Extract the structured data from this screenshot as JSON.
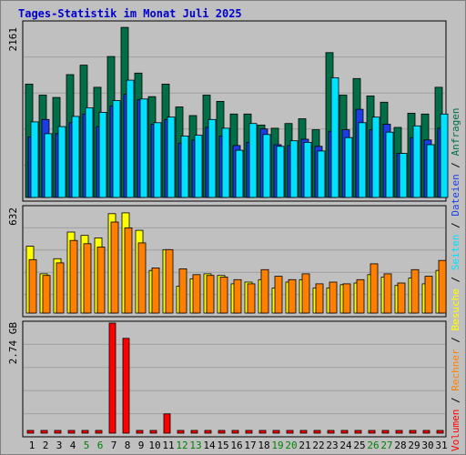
{
  "title": "Tages-Statistik im Monat Juli 2025",
  "colors": {
    "frame_bg": "#c0c0c0",
    "plot_bg": "#c0c0c0",
    "title": "#0000cc",
    "weekday_label": "#000000",
    "weekend_label": "#008000",
    "gridline": "#a0a0a0",
    "anfragen": "#006e46",
    "dateien": "#1c3ce6",
    "seiten": "#00e0ff",
    "besuche": "#ffff00",
    "rechner": "#ff8000",
    "volumen": "#ff0000"
  },
  "chart_data": [
    {
      "type": "bar",
      "panel": "top",
      "y_axis_label": "2161",
      "ylim": [
        0,
        2161
      ],
      "grid": true,
      "categories": [
        "1",
        "2",
        "3",
        "4",
        "5",
        "6",
        "7",
        "8",
        "9",
        "10",
        "11",
        "12",
        "13",
        "14",
        "15",
        "16",
        "17",
        "18",
        "19",
        "20",
        "21",
        "22",
        "23",
        "24",
        "25",
        "26",
        "27",
        "28",
        "29",
        "30",
        "31"
      ],
      "weekend_days": [
        "5",
        "6",
        "12",
        "13",
        "19",
        "20",
        "26",
        "27"
      ],
      "series": [
        {
          "name": "Anfragen",
          "color": "#006e46",
          "values": [
            1440,
            1300,
            1270,
            1560,
            1680,
            1400,
            1790,
            2160,
            1580,
            1280,
            1440,
            1150,
            1040,
            1300,
            1220,
            1060,
            1060,
            920,
            880,
            940,
            1000,
            860,
            1840,
            1300,
            1510,
            1290,
            1210,
            890,
            1070,
            1060,
            1400
          ]
        },
        {
          "name": "Dateien",
          "color": "#1c3ce6",
          "values": [
            770,
            990,
            810,
            950,
            1060,
            900,
            1160,
            1310,
            1240,
            930,
            990,
            690,
            730,
            890,
            780,
            660,
            700,
            870,
            670,
            660,
            740,
            650,
            840,
            860,
            1120,
            860,
            930,
            560,
            760,
            730,
            880
          ]
        },
        {
          "name": "Seiten",
          "color": "#00e0ff",
          "values": [
            960,
            810,
            900,
            1030,
            1140,
            1080,
            1230,
            1490,
            1250,
            950,
            1020,
            780,
            790,
            990,
            880,
            600,
            940,
            800,
            650,
            720,
            700,
            590,
            1520,
            760,
            950,
            1020,
            830,
            560,
            910,
            670,
            1060
          ]
        }
      ]
    },
    {
      "type": "bar",
      "panel": "middle",
      "y_axis_label": "632",
      "ylim": [
        0,
        632
      ],
      "grid": true,
      "categories": [
        "1",
        "2",
        "3",
        "4",
        "5",
        "6",
        "7",
        "8",
        "9",
        "10",
        "11",
        "12",
        "13",
        "14",
        "15",
        "16",
        "17",
        "18",
        "19",
        "20",
        "21",
        "22",
        "23",
        "24",
        "25",
        "26",
        "27",
        "28",
        "29",
        "30",
        "31"
      ],
      "series": [
        {
          "name": "Besuche",
          "color": "#ffff00",
          "values": [
            400,
            235,
            325,
            485,
            465,
            450,
            595,
            600,
            495,
            255,
            380,
            160,
            205,
            235,
            225,
            175,
            185,
            200,
            150,
            185,
            200,
            150,
            150,
            170,
            180,
            230,
            215,
            165,
            210,
            175,
            255
          ]
        },
        {
          "name": "Rechner",
          "color": "#ff8000",
          "values": [
            320,
            225,
            300,
            435,
            415,
            395,
            545,
            510,
            420,
            270,
            380,
            265,
            230,
            225,
            215,
            200,
            175,
            260,
            220,
            200,
            235,
            175,
            185,
            175,
            200,
            295,
            235,
            180,
            260,
            220,
            315
          ]
        }
      ]
    },
    {
      "type": "bar",
      "panel": "bottom",
      "y_axis_label": "2.74 GB",
      "ylim": [
        0,
        2.74
      ],
      "unit": "GB",
      "grid": true,
      "categories": [
        "1",
        "2",
        "3",
        "4",
        "5",
        "6",
        "7",
        "8",
        "9",
        "10",
        "11",
        "12",
        "13",
        "14",
        "15",
        "16",
        "17",
        "18",
        "19",
        "20",
        "21",
        "22",
        "23",
        "24",
        "25",
        "26",
        "27",
        "28",
        "29",
        "30",
        "31"
      ],
      "series": [
        {
          "name": "Volumen",
          "color": "#ff0000",
          "values": [
            0.05,
            0.05,
            0.05,
            0.05,
            0.05,
            0.05,
            2.74,
            2.36,
            0.05,
            0.05,
            0.48,
            0.05,
            0.05,
            0.05,
            0.05,
            0.05,
            0.05,
            0.05,
            0.05,
            0.05,
            0.05,
            0.05,
            0.05,
            0.05,
            0.05,
            0.05,
            0.05,
            0.05,
            0.05,
            0.05,
            0.05
          ]
        }
      ]
    }
  ],
  "right_legend": {
    "volumen": "Volumen",
    "sep1": " / ",
    "rechner": "Rechner",
    "sep2": " / ",
    "besuche": "Besuche",
    "sep3": " / ",
    "seiten": "Seiten",
    "sep4": " / ",
    "dateien": "Dateien",
    "sep5": " / ",
    "anfragen": "Anfragen"
  }
}
